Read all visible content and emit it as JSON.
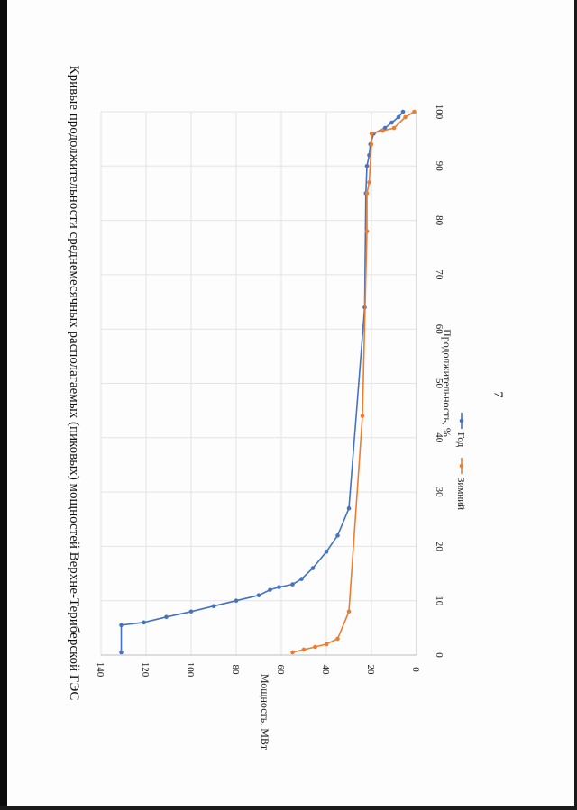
{
  "page_number": "7",
  "chart_data": {
    "type": "line",
    "title": "Кривые продолжительности среднемесячных располагаемых (пиковых) мощностей Верхне-Териберской ГЭС",
    "xlabel": "Продолжительность, %",
    "ylabel": "Мощность, МВт",
    "xlim": [
      0,
      100
    ],
    "ylim": [
      0,
      140
    ],
    "x_ticks": [
      0,
      10,
      20,
      30,
      40,
      50,
      60,
      70,
      80,
      90,
      100
    ],
    "y_ticks": [
      0,
      20,
      40,
      60,
      80,
      100,
      120,
      140
    ],
    "grid": true,
    "legend_position": "bottom",
    "series": [
      {
        "name": "Год",
        "color": "#4472C4",
        "x": [
          0.5,
          5.5,
          6,
          7,
          8,
          9,
          10,
          11,
          12,
          12.5,
          13,
          14,
          16,
          19,
          22,
          27,
          64,
          85,
          90,
          92,
          94,
          96,
          97,
          98,
          99,
          100
        ],
        "y": [
          131,
          131,
          121,
          111,
          100,
          90,
          80,
          70,
          65,
          61,
          55,
          51,
          46,
          40,
          35,
          30,
          23,
          22.5,
          22,
          21,
          20.5,
          19,
          14,
          11,
          8,
          6
        ]
      },
      {
        "name": "Зимний",
        "color": "#ED7D31",
        "x": [
          0.5,
          1,
          1.5,
          2,
          3,
          8,
          44,
          78,
          85,
          87,
          94,
          96,
          96.5,
          97,
          99,
          100
        ],
        "y": [
          55,
          50,
          45,
          40,
          35,
          30,
          24,
          22,
          22,
          21,
          20,
          20,
          15,
          10,
          5,
          1
        ]
      }
    ]
  }
}
